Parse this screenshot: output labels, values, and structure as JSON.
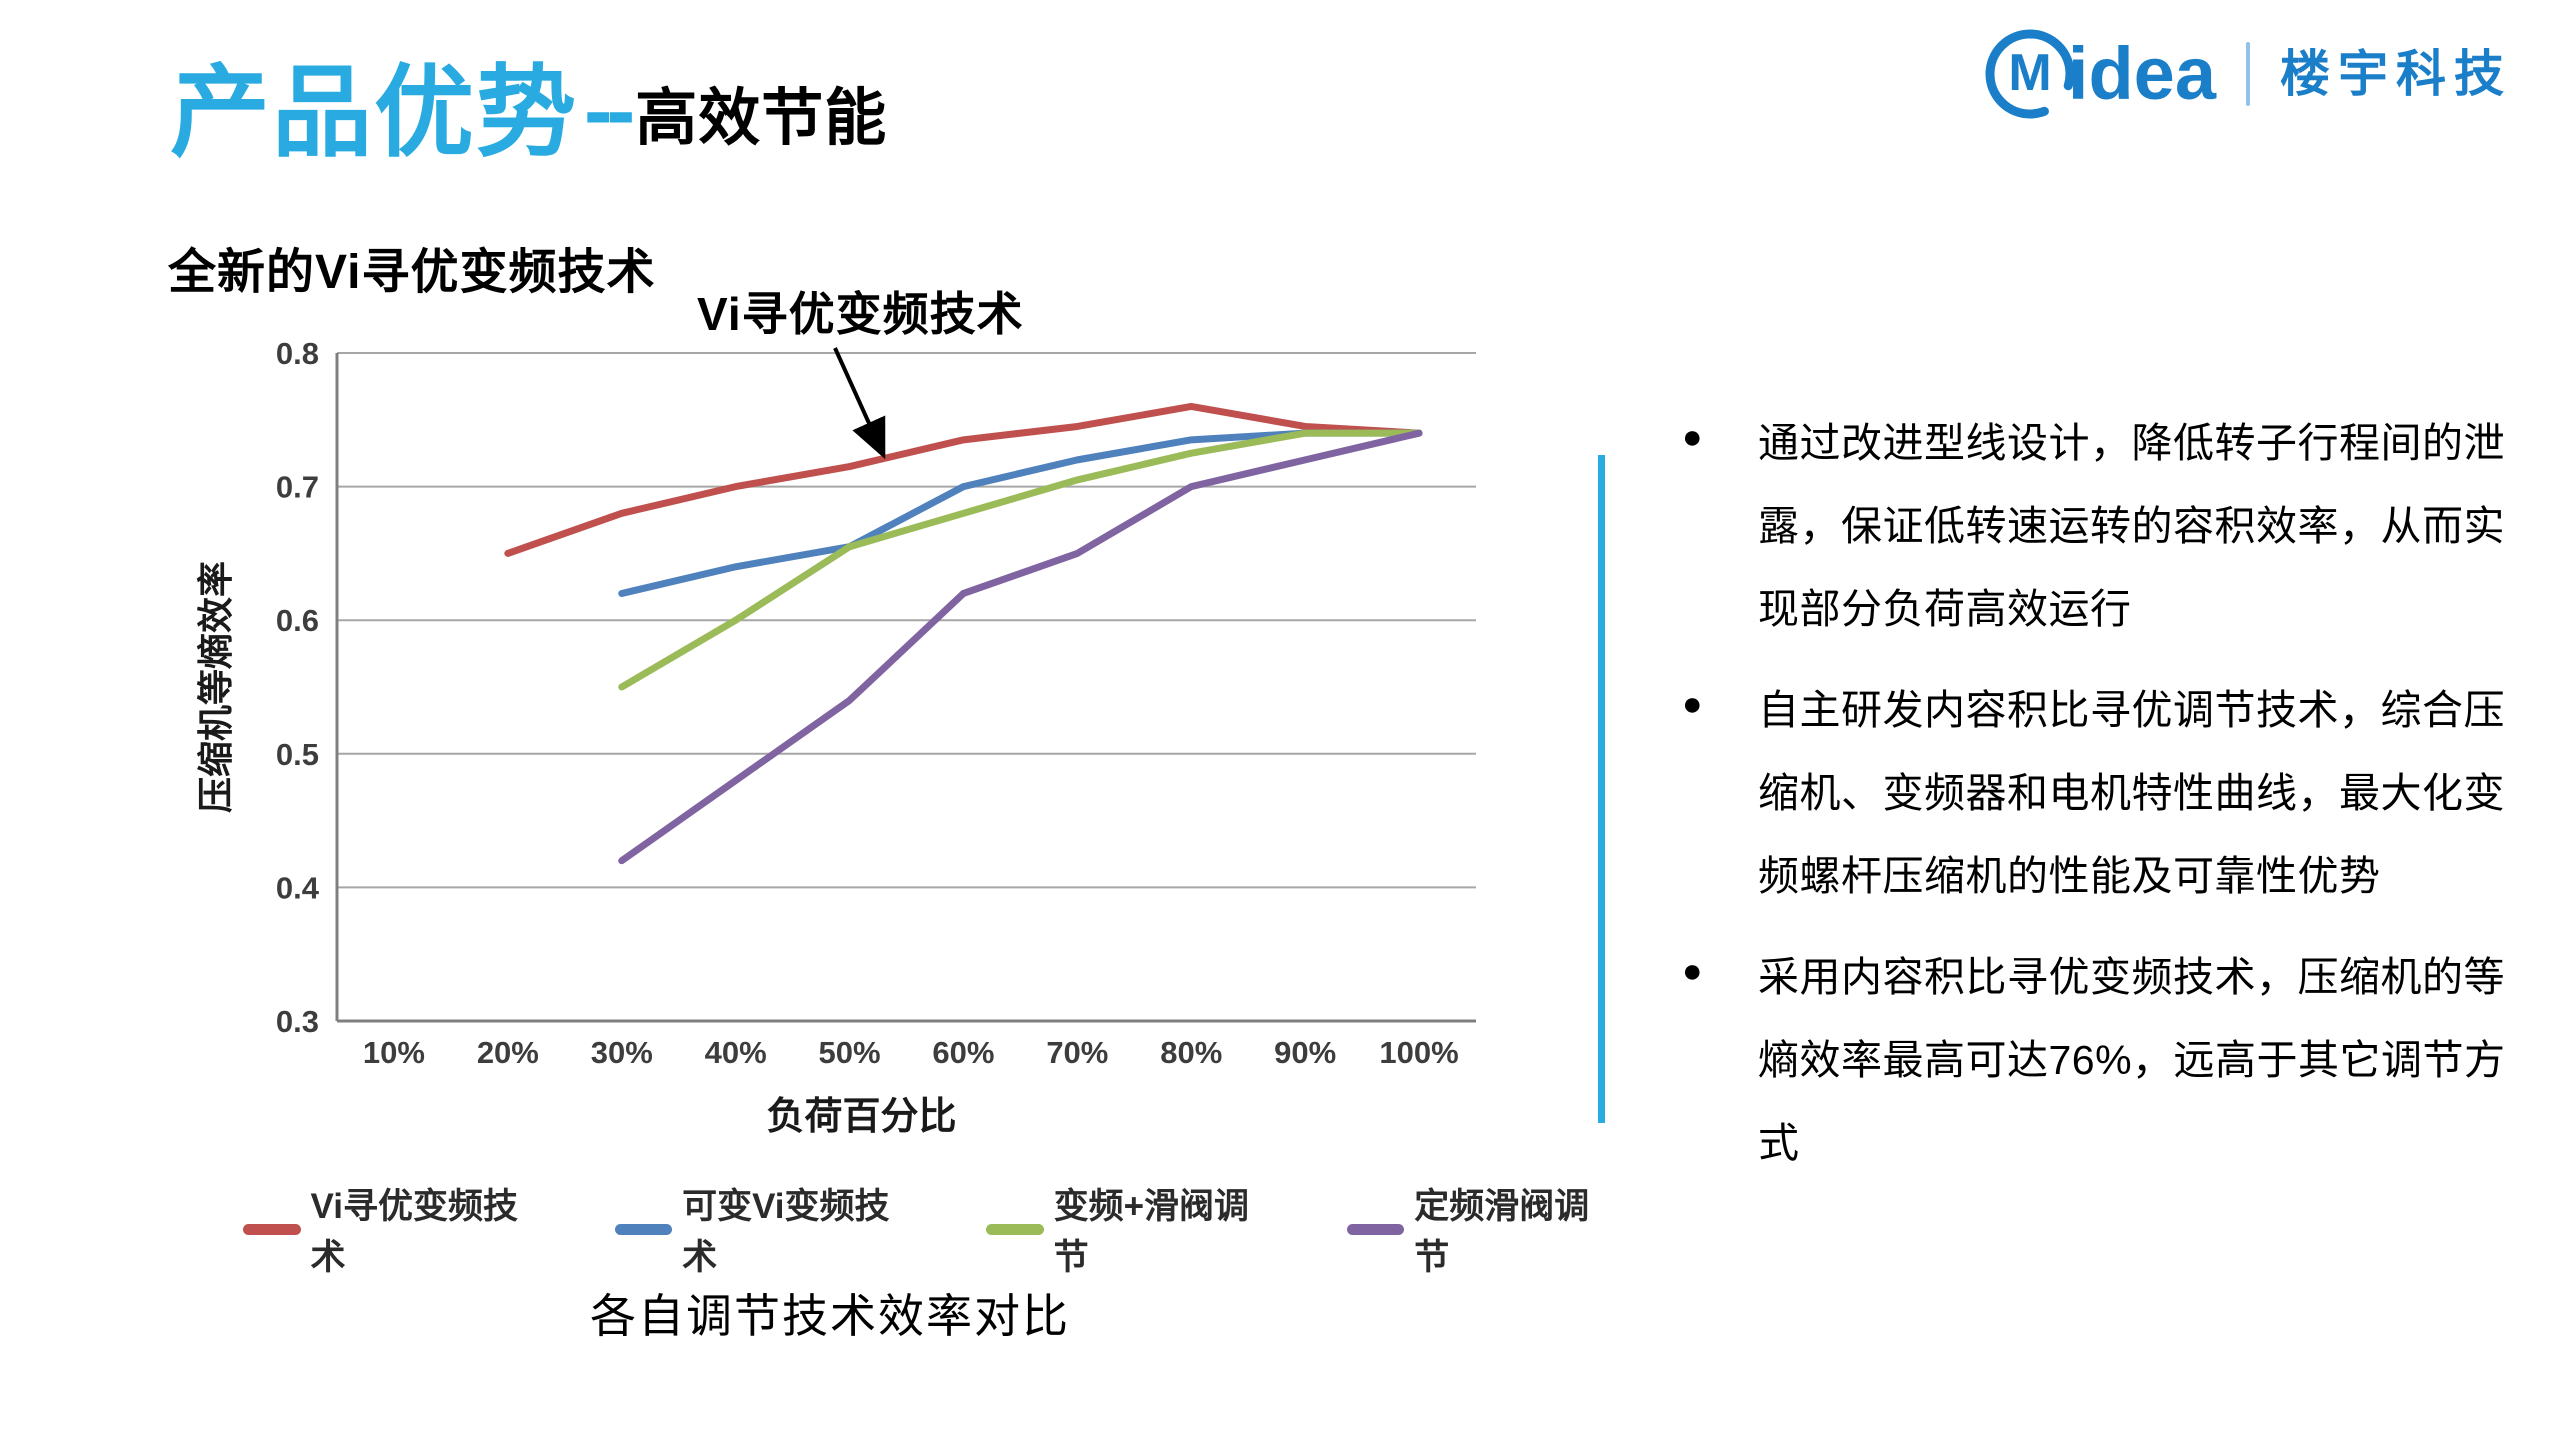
{
  "accent_color": "#29abe2",
  "brand_color": "#1b7ec8",
  "header": {
    "title": "产品优势",
    "dashes": "--",
    "subtitle": "高效节能",
    "logo": {
      "mark": "M",
      "rest": "idea",
      "unit": "楼宇科技"
    }
  },
  "section": {
    "heading": "全新的Vi寻优变频技术"
  },
  "annotation": {
    "label": "Vi寻优变频技术"
  },
  "chart_data": {
    "type": "line",
    "title": "各自调节技术效率对比",
    "xlabel": "负荷百分比",
    "ylabel": "压缩机等熵效率",
    "categories": [
      "10%",
      "20%",
      "30%",
      "40%",
      "50%",
      "60%",
      "70%",
      "80%",
      "90%",
      "100%"
    ],
    "ylim": [
      0.3,
      0.8
    ],
    "yticks": [
      0.3,
      0.4,
      0.5,
      0.6,
      0.7,
      0.8
    ],
    "grid": true,
    "legend_position": "bottom",
    "series": [
      {
        "name": "Vi寻优变频技术",
        "color": "#c0504d",
        "values": [
          null,
          0.65,
          0.68,
          0.7,
          0.715,
          0.735,
          0.745,
          0.76,
          0.745,
          0.74
        ]
      },
      {
        "name": "可变Vi变频技术",
        "color": "#4f81bd",
        "values": [
          null,
          null,
          0.62,
          0.64,
          0.655,
          0.7,
          0.72,
          0.735,
          0.74,
          0.74
        ]
      },
      {
        "name": "变频+滑阀调节",
        "color": "#9bbb59",
        "values": [
          null,
          null,
          0.55,
          0.6,
          0.655,
          0.68,
          0.705,
          0.725,
          0.74,
          0.74
        ]
      },
      {
        "name": "定频滑阀调节",
        "color": "#8064a2",
        "values": [
          null,
          null,
          0.42,
          0.48,
          0.54,
          0.62,
          0.65,
          0.7,
          0.72,
          0.74
        ]
      }
    ]
  },
  "bullets": [
    {
      "text": "通过改进型线设计，降低转子行程间的泄露，保证低转速运转的容积效率，从而实现部分负荷高效运行"
    },
    {
      "text": "自主研发内容积比寻优调节技术，综合压缩机、变频器和电机特性曲线，最大化变频螺杆压缩机的性能及可靠性优势"
    },
    {
      "text": "采用内容积比寻优变频技术，压缩机的等熵效率最高可达76%，远高于其它调节方式"
    }
  ]
}
